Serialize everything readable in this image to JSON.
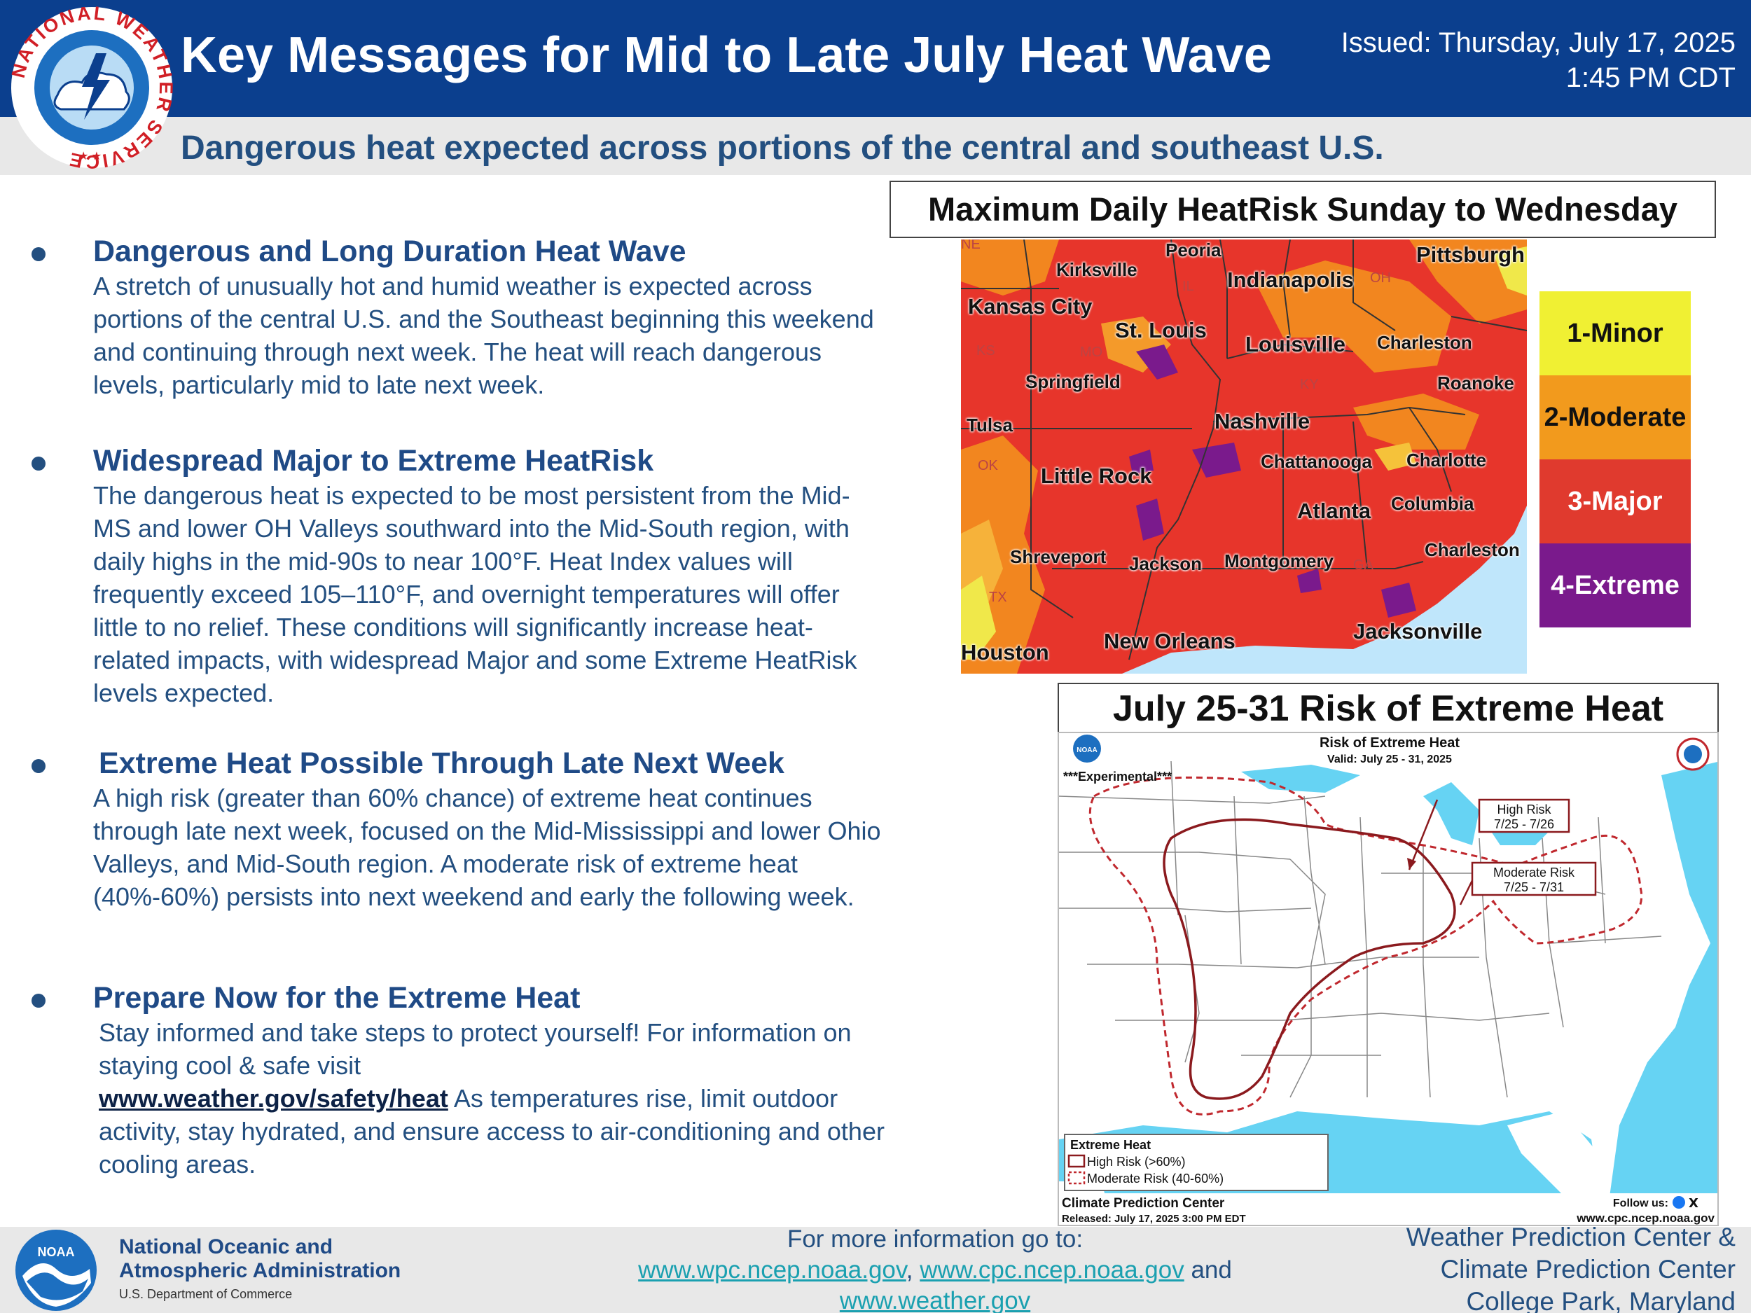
{
  "header": {
    "title": "Key Messages for Mid to Late July Heat Wave",
    "issued_line1": "Issued: Thursday, July 17, 2025",
    "issued_line2": "1:45 PM CDT",
    "subtitle": "Dangerous heat expected across portions of the central and southeast U.S.",
    "logo_text": "NATIONAL WEATHER SERVICE"
  },
  "bullets": [
    {
      "heading": "Dangerous and Long Duration Heat Wave",
      "body": "A stretch of unusually hot and humid weather is expected across portions of the central U.S. and the Southeast beginning this weekend and continuing through next week. The heat will reach dangerous levels, particularly mid to late next week."
    },
    {
      "heading": "Widespread Major to Extreme HeatRisk",
      "body": "The dangerous heat is expected to be most persistent from the Mid-MS and lower OH Valleys southward into the Mid-South region, with daily highs in the mid-90s to near 100°F. Heat Index values will frequently exceed 105–110°F, and overnight temperatures will offer little to no relief. These conditions will significantly increase heat-related impacts, with widespread Major and some Extreme HeatRisk levels expected."
    },
    {
      "heading": "Extreme Heat Possible Through Late Next Week",
      "body": "A high risk (greater than 60% chance) of extreme heat continues through late next week, focused on the Mid-Mississippi and lower Ohio Valleys, and Mid-South region. A moderate risk of extreme heat (40%-60%) persists into next weekend and early the following week."
    },
    {
      "heading": "Prepare Now for the Extreme Heat",
      "body_pre": "Stay informed and take steps to protect yourself! For information on staying cool & safe visit",
      "link": "www.weather.gov/safety/heat",
      "body_post": "As temperatures rise, limit outdoor activity, stay hydrated, and ensure access to air-conditioning and other cooling areas."
    }
  ],
  "heatrisk_map": {
    "title": "Maximum Daily HeatRisk Sunday to Wednesday",
    "cities": [
      "Peoria",
      "Kirksville",
      "Pittsburgh",
      "Indianapolis",
      "Kansas City",
      "St. Louis",
      "Louisville",
      "Charleston",
      "Springfield",
      "Roanoke",
      "Tulsa",
      "Nashville",
      "Chattanooga",
      "Charlotte",
      "Little Rock",
      "Atlanta",
      "Columbia",
      "Charleston",
      "Shreveport",
      "Jackson",
      "Montgomery",
      "Jacksonville",
      "New Orleans",
      "Houston"
    ],
    "state_labels": [
      "NE",
      "IL",
      "OH",
      "KS",
      "MO",
      "KY",
      "OK",
      "TX",
      "GA"
    ],
    "legend": [
      {
        "label": "1-Minor",
        "color": "#f0f033"
      },
      {
        "label": "2-Moderate",
        "color": "#f29a1d"
      },
      {
        "label": "3-Major",
        "color": "#e03a2e"
      },
      {
        "label": "4-Extreme",
        "color": "#7a1a8c"
      }
    ]
  },
  "extreme_map": {
    "title": "July 25-31 Risk of Extreme Heat",
    "inner_title": "Risk of Extreme Heat",
    "valid": "Valid: July 25 - 31, 2025",
    "experimental": "***Experimental***",
    "high_box_line1": "High Risk",
    "high_box_line2": "7/25 - 7/26",
    "mod_box_line1": "Moderate Risk",
    "mod_box_line2": "7/25 - 7/31",
    "legend_title": "Extreme Heat",
    "legend_high": "High Risk (>60%)",
    "legend_mod": "Moderate Risk (40-60%)",
    "center": "Climate Prediction Center",
    "released": "Released: July 17, 2025 3:00 PM EDT",
    "follow": "Follow us:",
    "site": "www.cpc.ncep.noaa.gov",
    "noaa_badge": "NOAA"
  },
  "footer": {
    "noaa_name_line1": "National Oceanic and",
    "noaa_name_line2": "Atmospheric Administration",
    "noaa_dept": "U.S. Department of Commerce",
    "noaa_badge": "NOAA",
    "more_info": "For more information go to:",
    "link1": "www.wpc.ncep.noaa.gov",
    "sep": ",",
    "link2": "www.cpc.ncep.noaa.gov",
    "and": "and",
    "link3": "www.weather.gov",
    "center_line1": "Weather Prediction Center &",
    "center_line2": "Climate Prediction Center",
    "center_line3": "College Park, Maryland"
  }
}
